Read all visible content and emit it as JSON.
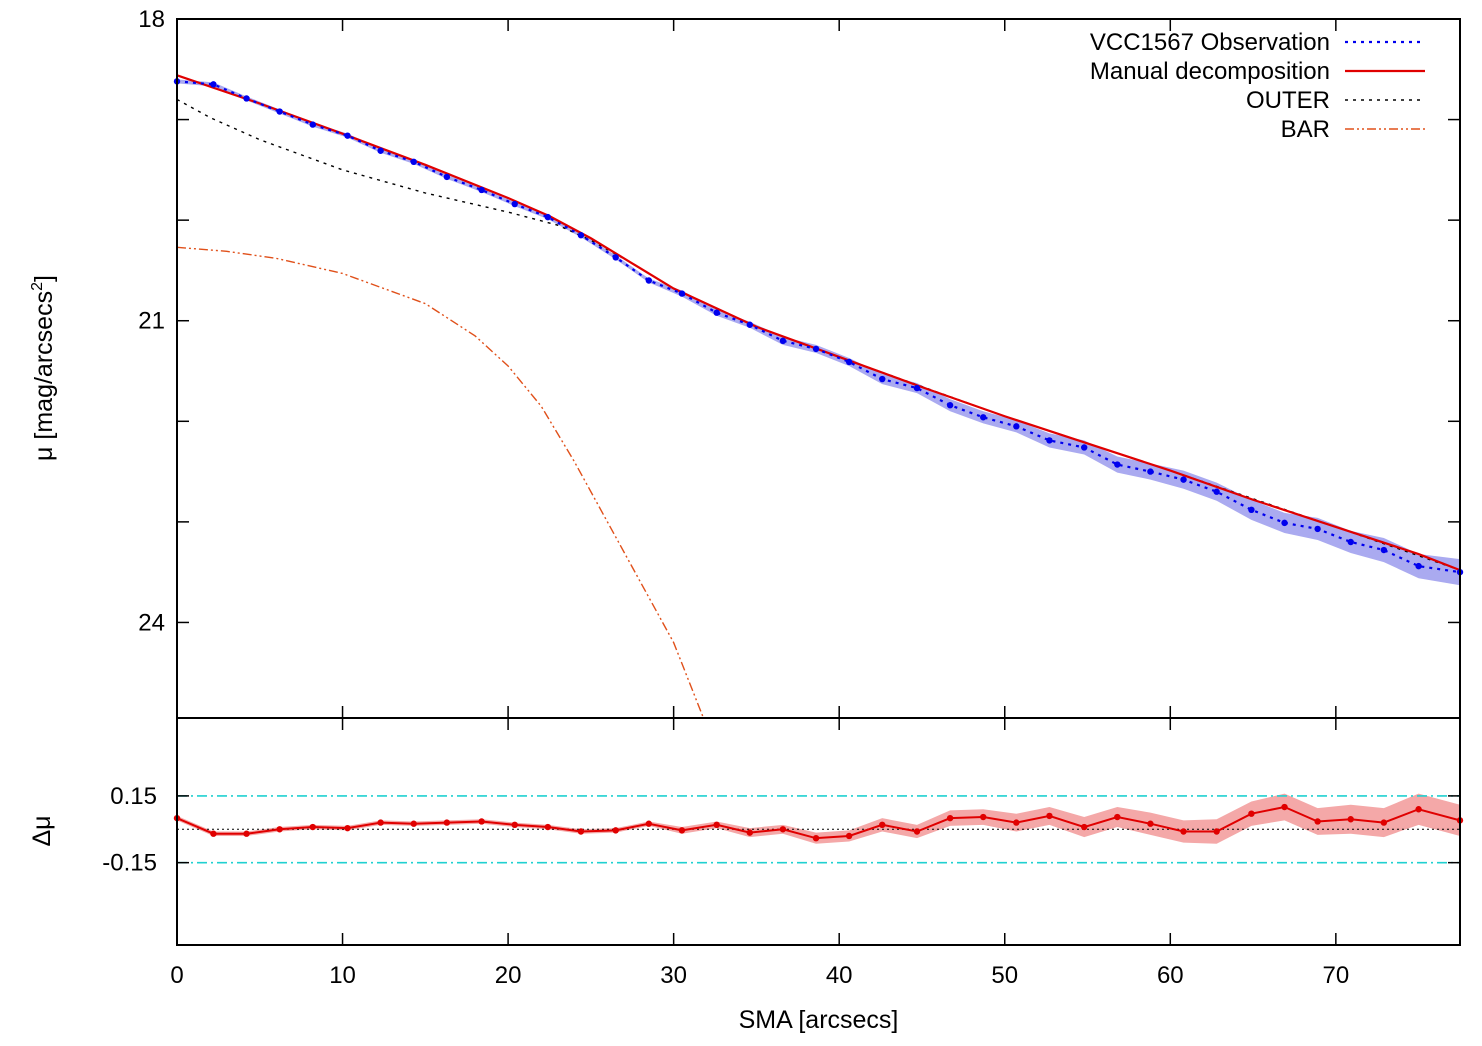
{
  "chart_data": [
    {
      "type": "line",
      "panel": "profile",
      "ylabel": "μ [mag/arcsecs",
      "ylabel_sup": "2",
      "ylabel_close": "]",
      "xlim": [
        0,
        77.5
      ],
      "ylim": [
        24.95,
        18
      ],
      "y_inverted": true,
      "yticks": [
        18,
        19,
        20,
        21,
        22,
        23,
        24
      ],
      "yticklabels": [
        "18",
        "",
        "",
        "21",
        "",
        "",
        "24"
      ],
      "legend_position": "top-right",
      "legend": [
        {
          "label": "VCC1567 Observation",
          "color": "#0000ee",
          "dash": "3,5"
        },
        {
          "label": "Manual decomposition",
          "color": "#e00000",
          "dash": ""
        },
        {
          "label": "OUTER",
          "color": "#000000",
          "dash": "3,5"
        },
        {
          "label": "BAR",
          "color": "#e0501a",
          "dash": "9,3,2,3,2,3"
        }
      ],
      "series": [
        {
          "name": "VCC1567 Observation",
          "color": "#0000ee",
          "band_color": "#aaaaf0",
          "x": [
            0,
            2.2,
            4.2,
            6.2,
            8.2,
            10.3,
            12.3,
            14.3,
            16.3,
            18.4,
            20.4,
            22.4,
            24.4,
            26.5,
            28.5,
            30.5,
            32.6,
            34.6,
            36.6,
            38.6,
            40.6,
            42.6,
            44.7,
            46.7,
            48.7,
            50.7,
            52.7,
            54.8,
            56.8,
            58.8,
            60.8,
            62.8,
            64.9,
            66.9,
            68.9,
            70.9,
            72.9,
            75.0,
            77.5
          ],
          "y": [
            18.62,
            18.65,
            18.79,
            18.92,
            19.05,
            19.16,
            19.31,
            19.42,
            19.57,
            19.7,
            19.84,
            19.97,
            20.15,
            20.37,
            20.6,
            20.73,
            20.92,
            21.04,
            21.2,
            21.28,
            21.41,
            21.58,
            21.67,
            21.84,
            21.96,
            22.05,
            22.19,
            22.26,
            22.43,
            22.5,
            22.58,
            22.7,
            22.88,
            23.01,
            23.07,
            23.2,
            23.28,
            23.44,
            23.5
          ],
          "err": [
            0.02,
            0.02,
            0.02,
            0.02,
            0.02,
            0.02,
            0.02,
            0.02,
            0.02,
            0.02,
            0.02,
            0.02,
            0.02,
            0.02,
            0.02,
            0.03,
            0.03,
            0.03,
            0.04,
            0.04,
            0.04,
            0.05,
            0.05,
            0.06,
            0.06,
            0.06,
            0.07,
            0.07,
            0.08,
            0.08,
            0.09,
            0.09,
            0.1,
            0.1,
            0.11,
            0.11,
            0.12,
            0.12,
            0.13
          ]
        },
        {
          "name": "Manual decomposition",
          "color": "#e00000",
          "x": [
            0,
            5,
            10,
            15,
            20,
            22.5,
            25,
            27.5,
            30,
            35,
            40,
            45,
            50,
            55,
            60,
            65,
            70,
            75,
            77.5
          ],
          "y": [
            18.56,
            18.84,
            19.14,
            19.45,
            19.78,
            19.96,
            20.18,
            20.43,
            20.68,
            21.06,
            21.36,
            21.66,
            21.95,
            22.22,
            22.49,
            22.78,
            23.05,
            23.32,
            23.48
          ]
        },
        {
          "name": "OUTER",
          "color": "#000000",
          "x": [
            0,
            2,
            5,
            10,
            15,
            20,
            23,
            25,
            27.5,
            30,
            35,
            40,
            50,
            60,
            70,
            77.5
          ],
          "y": [
            18.8,
            18.98,
            19.2,
            19.5,
            19.73,
            19.92,
            20.05,
            20.2,
            20.43,
            20.68,
            21.06,
            21.36,
            21.95,
            22.49,
            23.05,
            23.48
          ]
        },
        {
          "name": "BAR",
          "color": "#e0501a",
          "x": [
            0,
            3,
            6,
            10,
            15,
            18,
            20,
            22,
            24,
            26,
            28,
            30,
            31.8
          ],
          "y": [
            20.27,
            20.31,
            20.38,
            20.53,
            20.83,
            21.15,
            21.45,
            21.85,
            22.4,
            23.0,
            23.6,
            24.2,
            24.95
          ]
        }
      ]
    },
    {
      "type": "line",
      "panel": "residual",
      "xlabel": "SMA [arcsecs]",
      "ylabel": "Δμ",
      "xlim": [
        0,
        77.5
      ],
      "ylim": [
        -0.52,
        0.5
      ],
      "xticks": [
        0,
        10,
        20,
        30,
        40,
        50,
        60,
        70
      ],
      "xticklabels": [
        "0",
        "10",
        "20",
        "30",
        "40",
        "50",
        "60",
        "70"
      ],
      "yticks": [
        0.15,
        -0.15
      ],
      "yticklabels": [
        "0.15",
        "-0.15"
      ],
      "reference_lines": [
        0.15,
        -0.15
      ],
      "reference_color": "#20d0d0",
      "zero_line": 0,
      "series": [
        {
          "name": "residual",
          "color": "#e00000",
          "band_color": "#f4a8a8",
          "x": [
            0,
            2.2,
            4.2,
            6.2,
            8.2,
            10.3,
            12.3,
            14.3,
            16.3,
            18.4,
            20.4,
            22.4,
            24.4,
            26.5,
            28.5,
            30.5,
            32.6,
            34.6,
            36.6,
            38.6,
            40.6,
            42.6,
            44.7,
            46.7,
            48.7,
            50.7,
            52.7,
            54.8,
            56.8,
            58.8,
            60.8,
            62.8,
            64.9,
            66.9,
            68.9,
            70.9,
            72.9,
            75.0,
            77.5
          ],
          "y": [
            0.05,
            -0.02,
            -0.02,
            0.0,
            0.01,
            0.005,
            0.03,
            0.025,
            0.03,
            0.035,
            0.02,
            0.01,
            -0.01,
            -0.005,
            0.025,
            -0.005,
            0.02,
            -0.015,
            0.0,
            -0.04,
            -0.03,
            0.02,
            -0.01,
            0.05,
            0.055,
            0.03,
            0.06,
            0.01,
            0.055,
            0.025,
            -0.01,
            -0.01,
            0.07,
            0.1,
            0.035,
            0.045,
            0.03,
            0.09,
            0.04
          ],
          "err": [
            0.01,
            0.01,
            0.01,
            0.01,
            0.01,
            0.01,
            0.01,
            0.01,
            0.01,
            0.01,
            0.01,
            0.01,
            0.01,
            0.01,
            0.01,
            0.015,
            0.015,
            0.02,
            0.02,
            0.025,
            0.025,
            0.03,
            0.03,
            0.035,
            0.035,
            0.04,
            0.04,
            0.045,
            0.045,
            0.05,
            0.05,
            0.055,
            0.055,
            0.06,
            0.06,
            0.065,
            0.065,
            0.07,
            0.07
          ]
        }
      ]
    }
  ]
}
